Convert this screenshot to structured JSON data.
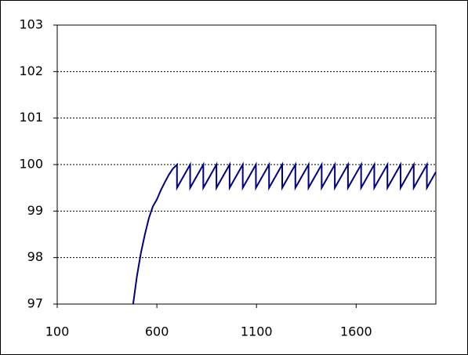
{
  "chart_data": {
    "type": "line",
    "color": "#000080",
    "x": [
      481,
      500,
      520,
      540,
      560,
      580,
      600,
      620,
      640,
      660,
      680,
      701,
      701,
      767,
      767,
      833,
      833,
      899,
      899,
      965,
      965,
      1031,
      1031,
      1097,
      1097,
      1163,
      1163,
      1229,
      1229,
      1295,
      1295,
      1361,
      1361,
      1427,
      1427,
      1493,
      1493,
      1559,
      1559,
      1625,
      1625,
      1691,
      1691,
      1757,
      1757,
      1823,
      1823,
      1889,
      1889,
      1955,
      1955,
      2000
    ],
    "values": [
      97,
      97.6,
      98.1,
      98.5,
      98.85,
      99.1,
      99.25,
      99.45,
      99.62,
      99.78,
      99.91,
      100,
      99.5,
      100,
      99.5,
      100,
      99.5,
      100,
      99.5,
      100,
      99.5,
      100,
      99.5,
      100,
      99.5,
      100,
      99.5,
      100,
      99.5,
      100,
      99.5,
      100,
      99.5,
      100,
      99.5,
      100,
      99.5,
      100,
      99.5,
      100,
      99.5,
      100,
      99.5,
      100,
      99.5,
      100,
      99.5,
      100,
      99.5,
      100,
      99.5,
      99.84
    ],
    "xlim": [
      100,
      2000
    ],
    "xticks": [
      100,
      600,
      1100,
      1600
    ],
    "ylim": [
      97,
      103
    ],
    "yticks": [
      97,
      98,
      99,
      100,
      101,
      102,
      103
    ],
    "grid": true
  }
}
